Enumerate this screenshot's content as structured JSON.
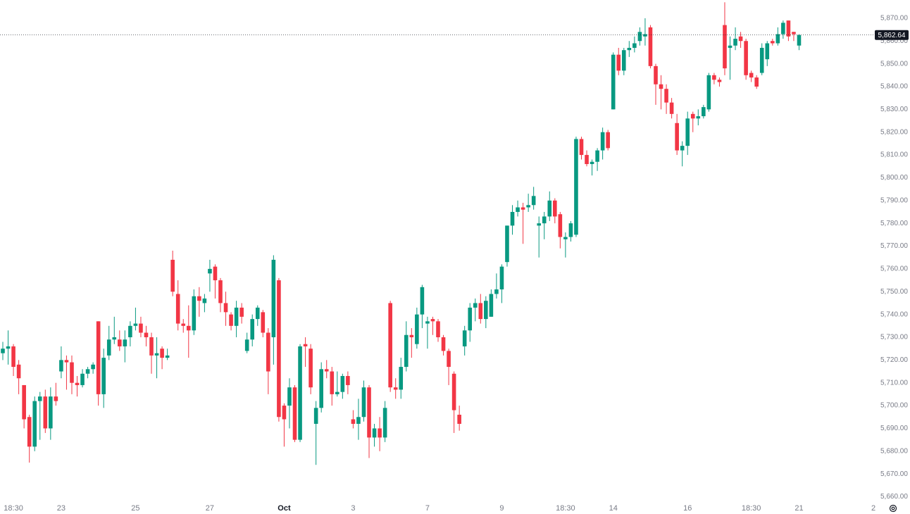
{
  "chart_data": {
    "type": "candlestick",
    "up_color": "#089981",
    "down_color": "#f23645",
    "categories": [
      null,
      null,
      "18:30",
      null,
      null,
      null,
      null,
      null,
      null,
      null,
      null,
      "23",
      null,
      null,
      null,
      null,
      null,
      null,
      null,
      null,
      null,
      null,
      null,
      null,
      null,
      "25",
      null,
      null,
      null,
      null,
      null,
      null,
      null,
      null,
      null,
      null,
      null,
      null,
      null,
      "27",
      null,
      null,
      null,
      null,
      null,
      null,
      null,
      null,
      null,
      null,
      null,
      null,
      null,
      "Oct",
      null,
      null,
      null,
      null,
      null,
      null,
      null,
      null,
      null,
      null,
      null,
      null,
      "3",
      null,
      null,
      null,
      null,
      null,
      null,
      null,
      null,
      null,
      null,
      null,
      null,
      null,
      "7",
      null,
      null,
      null,
      null,
      null,
      null,
      null,
      null,
      null,
      null,
      null,
      null,
      null,
      "9",
      null,
      null,
      null,
      null,
      null,
      null,
      null,
      null,
      null,
      null,
      null,
      "18:30",
      null,
      null,
      null,
      null,
      null,
      null,
      null,
      null,
      "14",
      null,
      null,
      null,
      null,
      null,
      null,
      null,
      null,
      null,
      null,
      null,
      null,
      null,
      "16",
      null,
      null,
      null,
      null,
      null,
      null,
      null,
      null,
      null,
      null,
      null,
      "18:30",
      null,
      null,
      null,
      null,
      null,
      null,
      null,
      null,
      "21",
      null,
      null,
      null,
      null,
      null,
      null,
      null,
      null,
      null,
      null,
      null,
      null,
      null,
      "2"
    ],
    "open": [
      5723,
      5725,
      5726,
      5718,
      5709,
      5695,
      5682,
      5702,
      5704,
      5690,
      5704,
      5715,
      5720,
      5719,
      5710,
      5709,
      5714,
      5716,
      5737,
      5705,
      5722,
      5729,
      5729,
      5726,
      5730,
      5735,
      5736,
      5732,
      5730,
      5722,
      5725,
      5721,
      5764,
      5749,
      5736,
      5735,
      5733,
      5748,
      5745,
      5758,
      5761,
      5755,
      5745,
      5740,
      5735,
      5743,
      5724,
      5729,
      5738,
      5741,
      5732,
      5730,
      5755,
      5700,
      5700,
      5708,
      5685,
      5727,
      5725,
      5692,
      5699,
      5716,
      5715,
      5705,
      5706,
      5713,
      5694,
      5692,
      5695,
      5708,
      5686,
      5690,
      5686,
      5745,
      5708,
      5707,
      5717,
      5731,
      5727,
      5740,
      5736,
      5738,
      5737,
      5730,
      5724,
      5714,
      5696,
      5726,
      5733,
      5743,
      5745,
      5738,
      5739,
      5749,
      5751,
      5763,
      5779,
      5785,
      5787,
      5787,
      5788,
      5779,
      5780,
      5783,
      5790,
      5784,
      5773,
      5774,
      5775,
      5817,
      5810,
      5806,
      5807,
      5812,
      5820,
      5830,
      5854,
      5847,
      5856,
      5857,
      5860,
      5862,
      5866,
      5849,
      5841,
      5839,
      5833,
      5824,
      5812,
      5814,
      5828,
      5826,
      5827,
      5830,
      5845,
      5843,
      5867,
      5857,
      5858,
      5862,
      5860,
      5846,
      5844,
      5846,
      5852,
      5860,
      5859,
      5863,
      5869,
      5864,
      5858,
      null,
      null,
      null,
      null,
      null,
      null,
      null,
      null,
      null,
      null,
      null,
      null,
      null,
      null
    ],
    "high": [
      5728,
      5733,
      5727,
      5720,
      5709,
      5696,
      5704,
      5706,
      5707,
      5708,
      5710,
      5726,
      5722,
      5722,
      5713,
      5716,
      5717,
      5719,
      5737,
      5725,
      5735,
      5739,
      5733,
      5733,
      5737,
      5743,
      5739,
      5735,
      5732,
      5730,
      5726,
      5725,
      5768,
      5755,
      5738,
      5744,
      5751,
      5752,
      5749,
      5764,
      5762,
      5756,
      5750,
      5741,
      5746,
      5745,
      5732,
      5740,
      5744,
      5742,
      5734,
      5766,
      5756,
      5701,
      5712,
      5709,
      5727,
      5730,
      5727,
      5702,
      5719,
      5720,
      5717,
      5715,
      5714,
      5715,
      5698,
      5703,
      5711,
      5709,
      5692,
      5695,
      5702,
      5746,
      5712,
      5721,
      5737,
      5734,
      5743,
      5753,
      5739,
      5739,
      5738,
      5731,
      5725,
      5715,
      5700,
      5735,
      5745,
      5747,
      5749,
      5748,
      5751,
      5758,
      5762,
      5779,
      5788,
      5790,
      5789,
      5793,
      5796,
      5783,
      5785,
      5794,
      5791,
      5785,
      5776,
      5781,
      5818,
      5818,
      5812,
      5808,
      5813,
      5822,
      5821,
      5855,
      5857,
      5857,
      5860,
      5862,
      5866,
      5870,
      5867,
      5850,
      5845,
      5841,
      5835,
      5828,
      5816,
      5829,
      5829,
      5830,
      5832,
      5846,
      5846,
      5844,
      5877,
      5862,
      5866,
      5864,
      5861,
      5847,
      5845,
      5859,
      5860,
      5861,
      5866,
      5869,
      5869,
      5864,
      5863,
      null,
      null,
      null,
      null,
      null,
      null,
      null,
      null,
      null,
      null,
      null,
      null,
      null,
      null
    ],
    "low": [
      5720,
      5718,
      5713,
      5705,
      5690,
      5675,
      5680,
      5685,
      5688,
      5685,
      5700,
      5712,
      5707,
      5705,
      5704,
      5708,
      5712,
      5714,
      5700,
      5699,
      5720,
      5727,
      5724,
      5719,
      5726,
      5733,
      5730,
      5726,
      5714,
      5712,
      5716,
      5720,
      5748,
      5733,
      5732,
      5721,
      5731,
      5739,
      5741,
      5750,
      5747,
      5741,
      5735,
      5733,
      5730,
      5736,
      5723,
      5726,
      5735,
      5730,
      5705,
      5718,
      5693,
      5682,
      5690,
      5684,
      5684,
      5717,
      5705,
      5674,
      5697,
      5712,
      5700,
      5704,
      5703,
      5705,
      5690,
      5685,
      5693,
      5677,
      5682,
      5680,
      5684,
      5706,
      5703,
      5703,
      5715,
      5721,
      5725,
      5734,
      5725,
      5731,
      5728,
      5722,
      5709,
      5688,
      5689,
      5722,
      5728,
      5737,
      5736,
      5734,
      5739,
      5747,
      5745,
      5761,
      5775,
      5783,
      5771,
      5785,
      5786,
      5765,
      5773,
      5781,
      5780,
      5769,
      5765,
      5772,
      5774,
      5808,
      5805,
      5801,
      5803,
      5808,
      5812,
      5830,
      5845,
      5845,
      5853,
      5855,
      5858,
      5858,
      5848,
      5832,
      5830,
      5828,
      5826,
      5810,
      5805,
      5810,
      5820,
      5823,
      5826,
      5829,
      5841,
      5840,
      5845,
      5843,
      5856,
      5857,
      5843,
      5842,
      5839,
      5845,
      5849,
      5858,
      5858,
      5861,
      5860,
      5860,
      5856,
      null,
      null,
      null,
      null,
      null,
      null,
      null,
      null,
      null,
      null,
      null,
      null,
      null,
      null
    ],
    "close": [
      5725,
      5726,
      5717,
      5712,
      5694,
      5682,
      5702,
      5704,
      5690,
      5704,
      5702,
      5720,
      5719,
      5710,
      5709,
      5714,
      5716,
      5718,
      5705,
      5721,
      5729,
      5730,
      5726,
      5729,
      5735,
      5736,
      5732,
      5730,
      5722,
      5723,
      5721,
      5722,
      5750,
      5736,
      5735,
      5733,
      5748,
      5746,
      5747,
      5760,
      5755,
      5745,
      5741,
      5735,
      5743,
      5739,
      5729,
      5738,
      5743,
      5732,
      5715,
      5764,
      5695,
      5694,
      5708,
      5685,
      5726,
      5726,
      5708,
      5699,
      5716,
      5715,
      5705,
      5706,
      5713,
      5709,
      5692,
      5695,
      5708,
      5686,
      5690,
      5686,
      5699,
      5708,
      5707,
      5717,
      5731,
      5730,
      5740,
      5752,
      5737,
      5737,
      5730,
      5724,
      5717,
      5698,
      5692,
      5733,
      5743,
      5745,
      5738,
      5746,
      5749,
      5751,
      5761,
      5779,
      5785,
      5787,
      5786,
      5788,
      5792,
      5780,
      5783,
      5790,
      5783,
      5774,
      5774,
      5780,
      5817,
      5810,
      5806,
      5807,
      5812,
      5820,
      5813,
      5854,
      5847,
      5856,
      5857,
      5859,
      5864,
      5863,
      5849,
      5841,
      5839,
      5833,
      5828,
      5812,
      5814,
      5826,
      5826,
      5827,
      5831,
      5845,
      5843,
      5842,
      5848,
      5858,
      5861,
      5860,
      5845,
      5844,
      5840,
      5857,
      5859,
      5859,
      5863,
      5868,
      5862,
      5863,
      5862.64,
      null,
      null,
      null,
      null,
      null,
      null,
      null,
      null,
      null,
      null,
      null,
      null,
      null,
      null
    ],
    "last_price": {
      "value": 5862.64,
      "label": "5,862.64"
    },
    "ylim": [
      5658,
      5878
    ],
    "yticks": [
      {
        "value": 5660,
        "label": "5,660.00"
      },
      {
        "value": 5670,
        "label": "5,670.00"
      },
      {
        "value": 5680,
        "label": "5,680.00"
      },
      {
        "value": 5690,
        "label": "5,690.00"
      },
      {
        "value": 5700,
        "label": "5,700.00"
      },
      {
        "value": 5710,
        "label": "5,710.00"
      },
      {
        "value": 5720,
        "label": "5,720.00"
      },
      {
        "value": 5730,
        "label": "5,730.00"
      },
      {
        "value": 5740,
        "label": "5,740.00"
      },
      {
        "value": 5750,
        "label": "5,750.00"
      },
      {
        "value": 5760,
        "label": "5,760.00"
      },
      {
        "value": 5770,
        "label": "5,770.00"
      },
      {
        "value": 5780,
        "label": "5,780.00"
      },
      {
        "value": 5790,
        "label": "5,790.00"
      },
      {
        "value": 5800,
        "label": "5,800.00"
      },
      {
        "value": 5810,
        "label": "5,810.00"
      },
      {
        "value": 5820,
        "label": "5,820.00"
      },
      {
        "value": 5830,
        "label": "5,830.00"
      },
      {
        "value": 5840,
        "label": "5,840.00"
      },
      {
        "value": 5850,
        "label": "5,850.00"
      },
      {
        "value": 5860,
        "label": "5,860.00"
      },
      {
        "value": 5870,
        "label": "5,870.00"
      }
    ]
  }
}
